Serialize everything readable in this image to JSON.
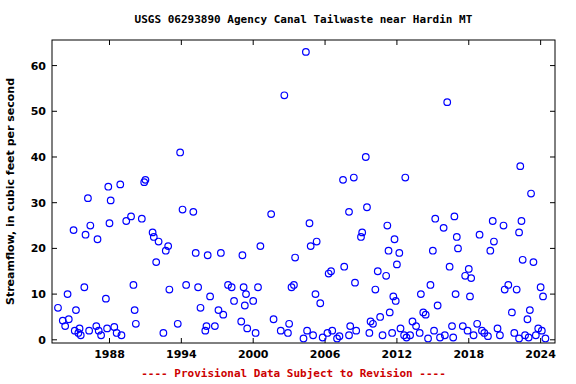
{
  "chart_data": {
    "type": "scatter",
    "title": "USGS 06293890 Agency Canal Tailwaste near Hardin MT",
    "y_label": "Streamflow, in cubic feet per second",
    "annotations": [
      "---- Provisional Data Subject to Revision ----"
    ],
    "x": [
      1983.7,
      1984.1,
      1984.3,
      1984.5,
      1984.6,
      1985.0,
      1985.1,
      1985.2,
      1985.4,
      1985.5,
      1985.6,
      1986.0,
      1986.2,
      1986.4,
      1985.9,
      1986.3,
      1987.0,
      1986.9,
      1987.1,
      1987.3,
      1987.7,
      1987.9,
      1988.1,
      1988.0,
      1987.8,
      1988.4,
      1988.9,
      1988.6,
      1989.0,
      1989.4,
      1989.8,
      1990.0,
      1990.1,
      1990.2,
      1990.7,
      1990.9,
      1991.0,
      1991.6,
      1991.7,
      1991.9,
      1992.1,
      1992.5,
      1992.7,
      1992.9,
      1993.0,
      1993.7,
      1993.9,
      1994.1,
      1994.4,
      1995.0,
      1995.2,
      1995.4,
      1995.6,
      1996.0,
      1996.1,
      1996.2,
      1996.4,
      1997.1,
      1997.3,
      1997.5,
      1996.8,
      1997.9,
      1998.2,
      1998.4,
      1999.0,
      1999.1,
      1999.2,
      1999.4,
      1999.5,
      1999.3,
      2000.0,
      2000.2,
      2000.6,
      2000.4,
      2001.5,
      2001.7,
      2002.3,
      2002.6,
      2002.9,
      2003.4,
      2003.2,
      2003.0,
      2003.5,
      2004.4,
      2004.5,
      2004.2,
      2004.8,
      2004.7,
      2005.3,
      2005.2,
      2005.0,
      2005.6,
      2005.8,
      2006.2,
      2006.3,
      2006.5,
      2006.6,
      2007.0,
      2007.2,
      2007.5,
      2007.6,
      2008.0,
      2008.4,
      2008.0,
      2008.5,
      2008.1,
      2008.6,
      2009.1,
      2009.0,
      2009.4,
      2009.5,
      2009.8,
      2009.7,
      2010.2,
      2010.4,
      2010.6,
      2010.0,
      2010.8,
      2011.2,
      2011.3,
      2011.1,
      2011.9,
      2011.4,
      2011.6,
      2011.8,
      2012.2,
      2012.0,
      2011.7,
      2012.3,
      2012.6,
      2012.7,
      2012.8,
      2013.1,
      2013.3,
      2013.6,
      2014.0,
      2014.2,
      2014.4,
      2013.9,
      2014.6,
      2014.8,
      2015.0,
      2015.2,
      2015.4,
      2015.1,
      2015.6,
      2015.9,
      2016.2,
      2016.4,
      2016.6,
      2016.0,
      2016.7,
      2016.8,
      2017.0,
      2017.1,
      2016.9,
      2017.5,
      2017.7,
      2018.0,
      2018.2,
      2018.1,
      2017.9,
      2018.4,
      2018.7,
      2018.9,
      2019.1,
      2019.3,
      2019.6,
      2019.8,
      2020.0,
      2020.1,
      2020.4,
      2020.6,
      2020.9,
      2021.0,
      2021.3,
      2021.6,
      2021.8,
      2022.2,
      2022.3,
      2022.4,
      2022.2,
      2022.5,
      2022.0,
      2022.7,
      2023.2,
      2023.4,
      2023.0,
      2023.1,
      2022.9,
      2023.6,
      2024.2,
      2024.0,
      2024.1,
      2024.4,
      2023.8
    ],
    "values": [
      7,
      4.2,
      3,
      10,
      4.5,
      24,
      2,
      6.5,
      1.5,
      2.5,
      1,
      23,
      31,
      25,
      11.5,
      2,
      22,
      3,
      2,
      1,
      9,
      33.5,
      30.5,
      25.5,
      2.5,
      2.8,
      34,
      1.5,
      1,
      26,
      27,
      12,
      6.5,
      3.5,
      26.5,
      34.5,
      35,
      23.5,
      22.5,
      17,
      21.5,
      1.5,
      19.5,
      20.5,
      11,
      3.5,
      41,
      28.5,
      12,
      28,
      19,
      11.5,
      7,
      2,
      3,
      18.5,
      9.5,
      6.5,
      19,
      5.5,
      3,
      12,
      11.5,
      8.5,
      4,
      18.5,
      11.5,
      10,
      2.5,
      7.5,
      8.5,
      1.5,
      20.5,
      11.5,
      27.5,
      4.5,
      2,
      53.5,
      1.5,
      12,
      11.5,
      3.5,
      18,
      63,
      2,
      0.3,
      20.5,
      25.5,
      21.5,
      10,
      1,
      8,
      0.5,
      1.5,
      14.5,
      15,
      2,
      0.3,
      0.8,
      35,
      16,
      1,
      35.5,
      28,
      12.5,
      3,
      2,
      23.5,
      22.5,
      40,
      29,
      4,
      1.5,
      11,
      15,
      5,
      3.5,
      1,
      25,
      19.5,
      14,
      8.5,
      6,
      1.5,
      22,
      19,
      16.5,
      9.5,
      2.5,
      1,
      35.5,
      0.5,
      1,
      4,
      3,
      10,
      6,
      5.5,
      1.5,
      0.3,
      12,
      19.5,
      26.5,
      7.5,
      2,
      0.5,
      24.5,
      52,
      16,
      3,
      1,
      0.5,
      27,
      22.5,
      20,
      10,
      3,
      14,
      15.5,
      13.5,
      9.5,
      2,
      1,
      3.5,
      23,
      2,
      1.5,
      0.8,
      19.5,
      26,
      21.5,
      2.5,
      1,
      25,
      11,
      12,
      6,
      1.5,
      0.3,
      38,
      26,
      23.5,
      17.5,
      11,
      1,
      32,
      17,
      0.5,
      6.5,
      4.5,
      1,
      9.5,
      11.5,
      2,
      0.3,
      2.5
    ],
    "color": "#0000ff",
    "marker": "circle-open",
    "xlim": [
      1983.2,
      2025.2
    ],
    "xticks": [
      1988,
      1994,
      2000,
      2006,
      2012,
      2018,
      2024
    ],
    "ylim": [
      -0.7,
      65.6
    ],
    "yticks": [
      0,
      10,
      20,
      30,
      40,
      50,
      60
    ],
    "grid": false
  }
}
